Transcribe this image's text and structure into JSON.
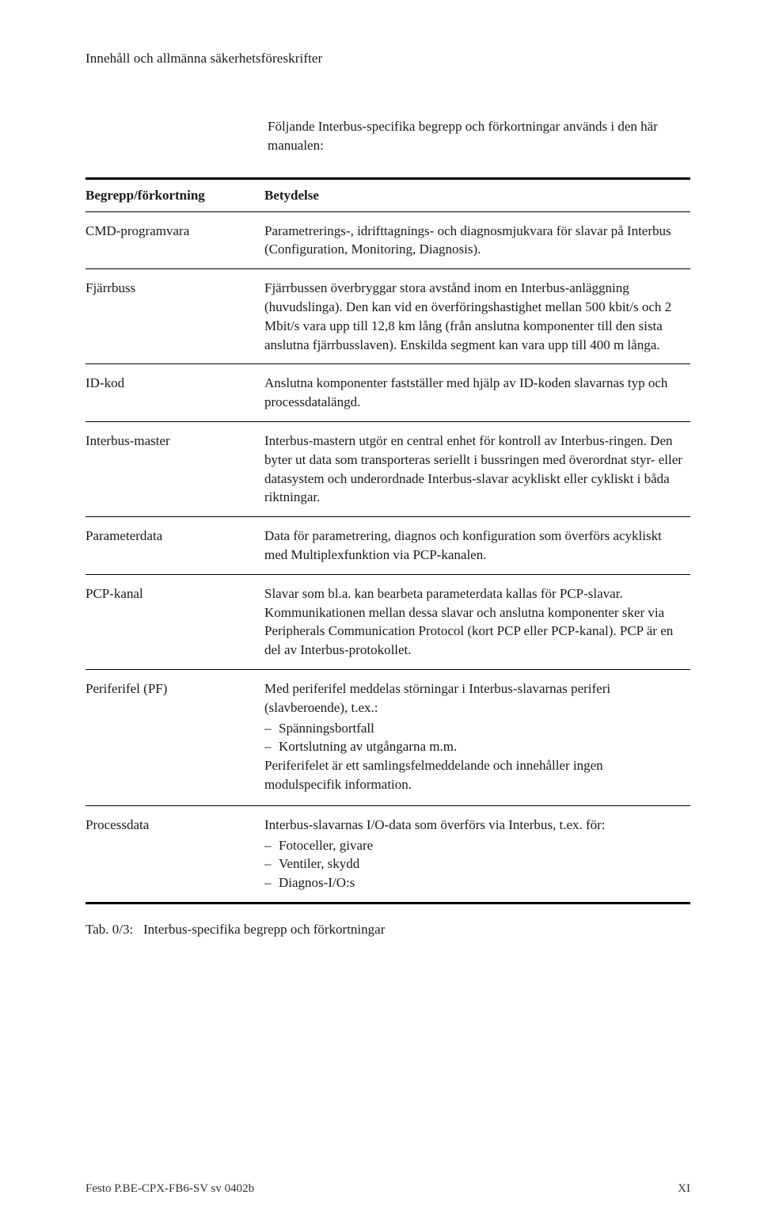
{
  "header": "Innehåll och allmänna säkerhetsföreskrifter",
  "intro": "Följande Interbus-specifika begrepp och förkortningar används i den här manualen:",
  "table": {
    "columns": [
      "Begrepp/förkortning",
      "Betydelse"
    ],
    "rows": [
      {
        "term": "CMD-programvara",
        "def": "Parametrerings-, idrifttagnings- och diagnosmjukvara för slavar på Interbus (Configuration, Monitoring, Diagnosis)."
      },
      {
        "term": "Fjärrbuss",
        "def": "Fjärrbussen överbryggar stora avstånd inom en Interbus-anläggning (huvudslinga). Den kan vid en överföringshastighet mellan 500 kbit/s och 2 Mbit/s vara upp till 12,8 km lång (från anslutna komponenter till den sista anslutna fjärrbusslaven). Enskilda segment kan vara upp till 400 m långa."
      },
      {
        "term": "ID-kod",
        "def": "Anslutna komponenter fastställer med hjälp av ID-koden slavarnas typ och processdatalängd."
      },
      {
        "term": "Interbus-master",
        "def": "Interbus-mastern utgör en central enhet för kontroll av Interbus-ringen. Den byter ut data som transporteras seriellt i bussringen med överordnat styr- eller datasystem och underordnade Interbus-slavar acykliskt eller cykliskt i båda riktningar."
      },
      {
        "term": "Parameterdata",
        "def": "Data för parametrering, diagnos och konfiguration som överförs acykliskt med Multiplexfunktion via PCP-kanalen."
      },
      {
        "term": "PCP-kanal",
        "def": "Slavar som bl.a. kan bearbeta parameterdata kallas för PCP-slavar. Kommunikationen mellan dessa slavar och anslutna komponenter sker via Peripherals Communication Protocol (kort PCP eller PCP-kanal). PCP är en del av Interbus-protokollet."
      },
      {
        "term": "Periferifel (PF)",
        "def_pre": "Med periferifel meddelas störningar i Interbus-slavarnas periferi (slavberoende), t.ex.:",
        "bullets": [
          "Spänningsbortfall",
          "Kortslutning av utgångarna m.m."
        ],
        "def_post": "Periferifelet är ett samlingsfelmeddelande och innehåller ingen modulspecifik information."
      },
      {
        "term": "Processdata",
        "def_pre": "Interbus-slavarnas I/O-data som överförs via Interbus, t.ex. för:",
        "bullets": [
          "Fotoceller, givare",
          "Ventiler, skydd",
          "Diagnos-I/O:s"
        ]
      }
    ]
  },
  "caption_label": "Tab. 0/3:",
  "caption_text": "Interbus-specifika begrepp och förkortningar",
  "footer_left": "Festo P.BE-CPX-FB6-SV sv 0402b",
  "footer_right": "XI"
}
